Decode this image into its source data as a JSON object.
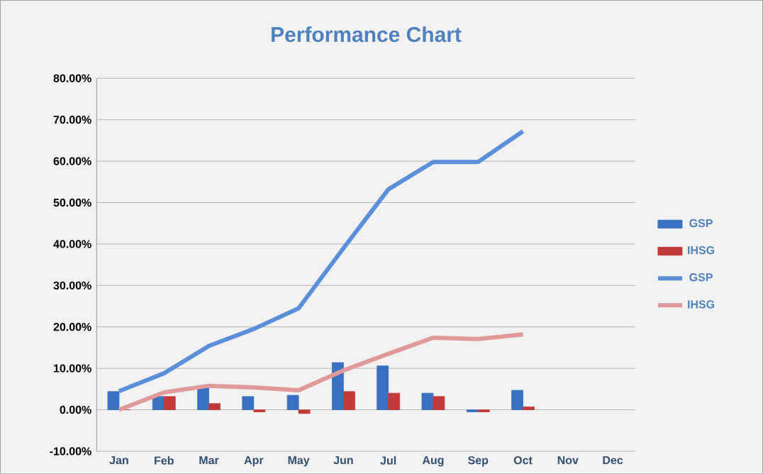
{
  "chart_data": {
    "type": "bar",
    "title": "Performance Chart",
    "categories": [
      "Jan",
      "Feb",
      "Mar",
      "Apr",
      "May",
      "Jun",
      "Jul",
      "Aug",
      "Sep",
      "Oct",
      "Nov",
      "Dec"
    ],
    "series": [
      {
        "name": "GSP",
        "color": "#3a70c0",
        "values": [
          4.4,
          3.2,
          5.5,
          3.2,
          3.5,
          11.4,
          10.6,
          4.0,
          -0.5,
          4.7,
          null,
          null
        ]
      },
      {
        "name": "IHSG",
        "color": "#c03a3a",
        "values": [
          0,
          3.2,
          1.5,
          -0.5,
          -0.9,
          4.4,
          4.0,
          3.2,
          -0.5,
          0.7,
          null,
          null
        ]
      },
      {
        "name": "GSP",
        "type": "line",
        "color": "#5b8fd9",
        "values": [
          4.5,
          8.8,
          15.4,
          19.5,
          24.5,
          39,
          53.2,
          59.8,
          59.8,
          67.2,
          null,
          null
        ]
      },
      {
        "name": "IHSG",
        "type": "line",
        "color": "#e09a9a",
        "values": [
          0,
          4.2,
          5.8,
          5.4,
          4.7,
          9.5,
          13.5,
          17.4,
          17.1,
          18.2,
          null,
          null
        ]
      }
    ],
    "ylim": [
      -10,
      80
    ],
    "yticks": [
      {
        "value": -10,
        "label": "-10.00%"
      },
      {
        "value": 0,
        "label": "0.00%"
      },
      {
        "value": 10,
        "label": "10.00%"
      },
      {
        "value": 20,
        "label": "20.00%"
      },
      {
        "value": 30,
        "label": "30.00%"
      },
      {
        "value": 40,
        "label": "40.00%"
      },
      {
        "value": 50,
        "label": "50.00%"
      },
      {
        "value": 60,
        "label": "60.00%"
      },
      {
        "value": 70,
        "label": "70.00%"
      },
      {
        "value": 80,
        "label": "80.00%"
      }
    ],
    "grid": "y",
    "legend": "right"
  }
}
